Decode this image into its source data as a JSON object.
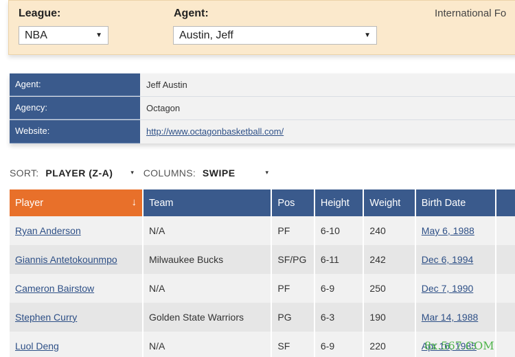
{
  "filters": {
    "league_label": "League:",
    "league_value": "NBA",
    "agent_label": "Agent:",
    "agent_value": "Austin, Jeff",
    "international_label": "International Fo"
  },
  "agent_info": [
    {
      "key": "Agent:",
      "value": "Jeff Austin"
    },
    {
      "key": "Agency:",
      "value": "Octagon"
    },
    {
      "key": "Website:",
      "value": "http://www.octagonbasketball.com/"
    }
  ],
  "sort": {
    "sort_label": "SORT:",
    "sort_value": "PLAYER (Z-A)",
    "columns_label": "COLUMNS:",
    "columns_value": "SWIPE",
    "caret": "▾"
  },
  "table": {
    "headers": [
      "Player",
      "Team",
      "Pos",
      "Height",
      "Weight",
      "Birth Date"
    ],
    "sort_arrow": "↓",
    "rows": [
      {
        "player": "Ryan Anderson",
        "team": "N/A",
        "pos": "PF",
        "height": "6-10",
        "weight": "240",
        "birth": "May 6, 1988"
      },
      {
        "player": "Giannis Antetokounmpo",
        "team": "Milwaukee Bucks",
        "pos": "SF/PG",
        "height": "6-11",
        "weight": "242",
        "birth": "Dec 6, 1994"
      },
      {
        "player": "Cameron Bairstow",
        "team": "N/A",
        "pos": "PF",
        "height": "6-9",
        "weight": "250",
        "birth": "Dec 7, 1990"
      },
      {
        "player": "Stephen Curry",
        "team": "Golden State Warriors",
        "pos": "PG",
        "height": "6-3",
        "weight": "190",
        "birth": "Mar 14, 1988"
      },
      {
        "player": "Luol Deng",
        "team": "N/A",
        "pos": "SF",
        "height": "6-9",
        "weight": "220",
        "birth": "Apr 16, 1985"
      }
    ]
  },
  "watermark": "8x.567.COM",
  "colors": {
    "header_blue": "#3a5a8c",
    "sorted_orange": "#e8702a",
    "panel_bg": "#fbe9cc"
  }
}
